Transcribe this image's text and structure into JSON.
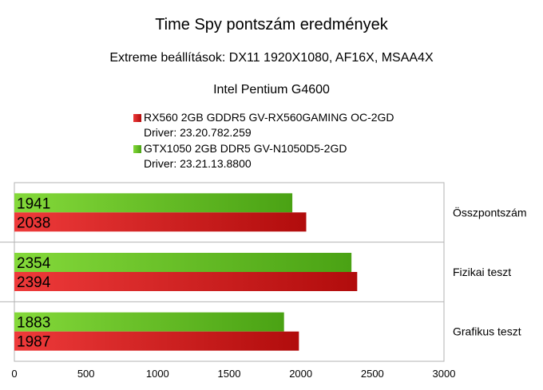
{
  "chart_data": {
    "type": "bar",
    "orientation": "horizontal",
    "title": "Time Spy pontszám eredmények",
    "subtitles": [
      "Extreme beállítások: DX11 1920X1080, AF16X, MSAA4X",
      "Intel Pentium G4600"
    ],
    "categories": [
      "Összpontszám",
      "Fizikai teszt",
      "Grafikus teszt"
    ],
    "series": [
      {
        "name": "RX560 2GB GDDR5 GV-RX560GAMING OC-2GD",
        "driver": "Driver: 23.20.782.259",
        "color": "#cc1f1f",
        "values": [
          2038,
          2394,
          1987
        ],
        "value_labels": [
          "2038",
          "2394",
          "1987"
        ]
      },
      {
        "name": "GTX1050 2GB DDR5 GV-N1050D5-2GD",
        "driver": "Driver: 23.21.13.8800",
        "color": "#5fbf1f",
        "values": [
          1941,
          2354,
          1883
        ],
        "value_labels": [
          "1941",
          "2354",
          "1883"
        ]
      }
    ],
    "xlim": [
      0,
      3000
    ],
    "xticks": [
      0,
      500,
      1000,
      1500,
      2000,
      2500,
      3000
    ],
    "xtick_labels": [
      "0",
      "500",
      "1000",
      "1500",
      "2000",
      "2500",
      "3000"
    ],
    "grid": true,
    "legend_position": "top-center"
  }
}
